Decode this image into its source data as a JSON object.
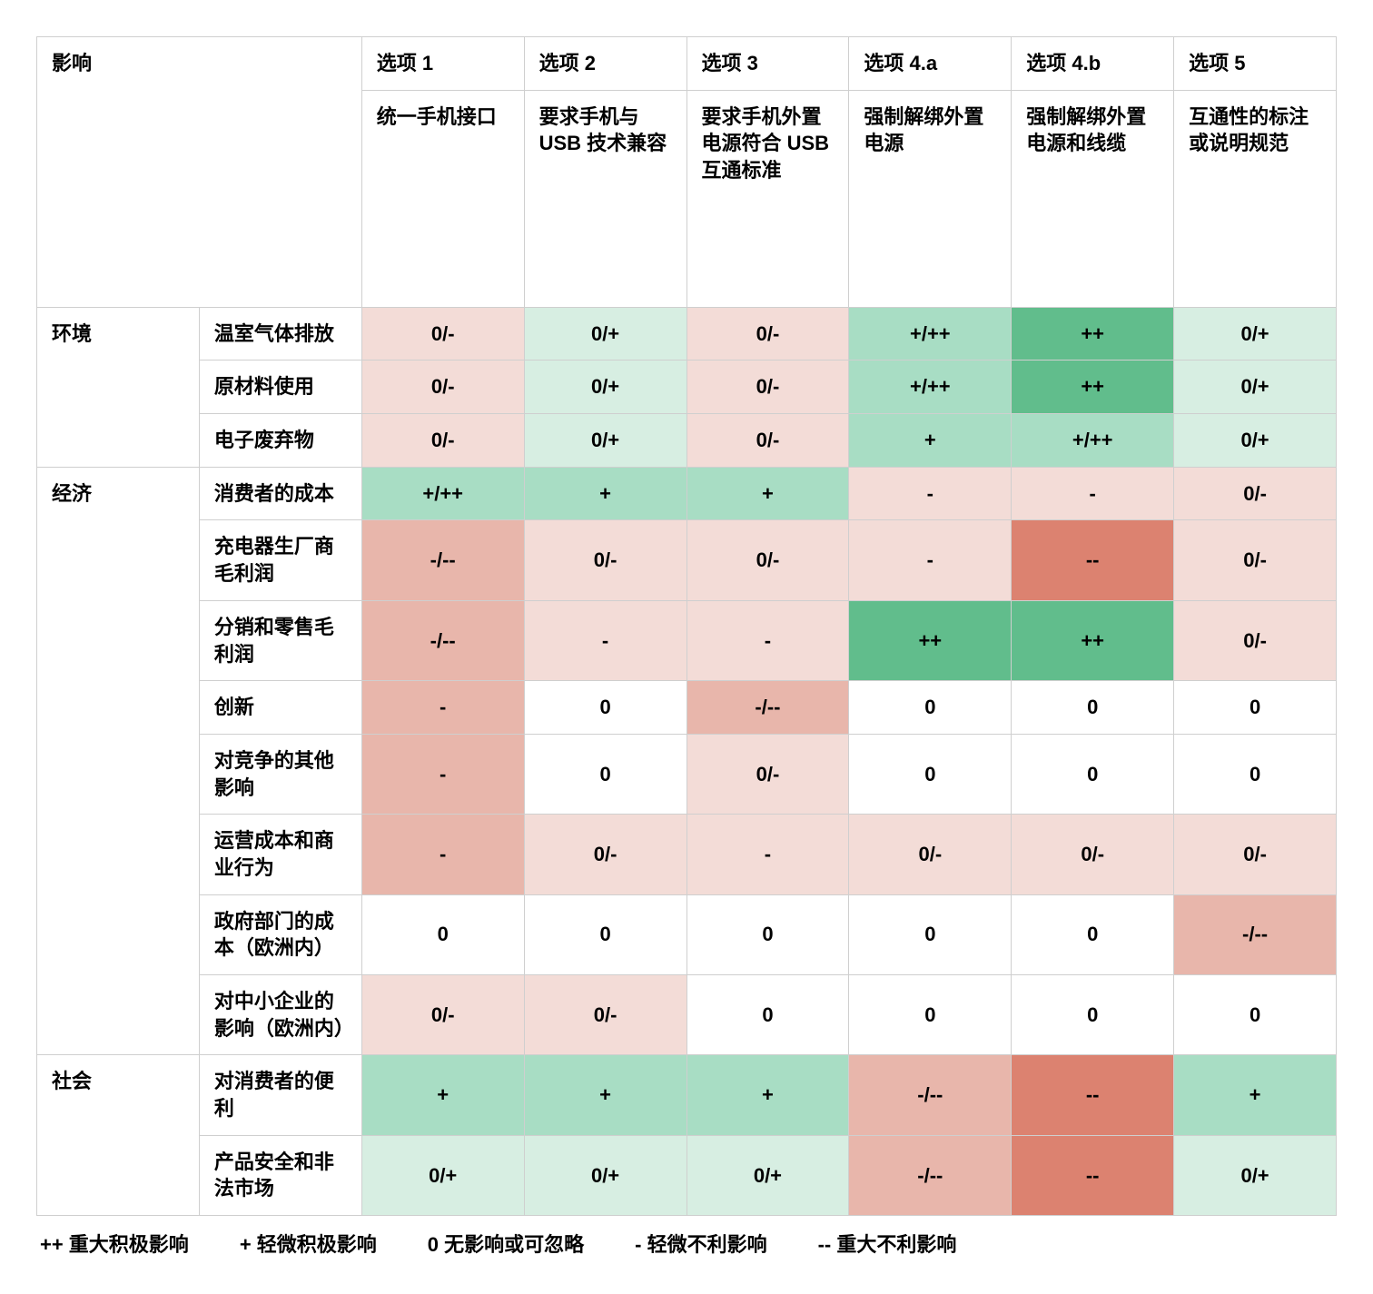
{
  "colors": {
    "white": "#ffffff",
    "lneg": "#f3dcd7",
    "mneg": "#e8b6ab",
    "hneg": "#dc8270",
    "lpos": "#d7eee2",
    "mpos": "#a8ddc4",
    "hpos": "#61bd8c"
  },
  "header": {
    "impact_label": "影响",
    "options": [
      {
        "title": "选项 1",
        "subtitle": "统一手机接口"
      },
      {
        "title": "选项 2",
        "subtitle": "要求手机与 USB 技术兼容"
      },
      {
        "title": "选项 3",
        "subtitle": "要求手机外置电源符合 USB 互通标准"
      },
      {
        "title": "选项 4.a",
        "subtitle": "强制解绑外置电源"
      },
      {
        "title": "选项 4.b",
        "subtitle": "强制解绑外置电源和线缆"
      },
      {
        "title": "选项 5",
        "subtitle": "互通性的标注或说明规范"
      }
    ]
  },
  "groups": [
    {
      "name": "环境",
      "rows": [
        {
          "label": "温室气体排放",
          "cells": [
            {
              "v": "0/-",
              "c": "lneg"
            },
            {
              "v": "0/+",
              "c": "lpos"
            },
            {
              "v": "0/-",
              "c": "lneg"
            },
            {
              "v": "+/++",
              "c": "mpos"
            },
            {
              "v": "++",
              "c": "hpos"
            },
            {
              "v": "0/+",
              "c": "lpos"
            }
          ]
        },
        {
          "label": "原材料使用",
          "cells": [
            {
              "v": "0/-",
              "c": "lneg"
            },
            {
              "v": "0/+",
              "c": "lpos"
            },
            {
              "v": "0/-",
              "c": "lneg"
            },
            {
              "v": "+/++",
              "c": "mpos"
            },
            {
              "v": "++",
              "c": "hpos"
            },
            {
              "v": "0/+",
              "c": "lpos"
            }
          ]
        },
        {
          "label": "电子废弃物",
          "cells": [
            {
              "v": "0/-",
              "c": "lneg"
            },
            {
              "v": "0/+",
              "c": "lpos"
            },
            {
              "v": "0/-",
              "c": "lneg"
            },
            {
              "v": "+",
              "c": "mpos"
            },
            {
              "v": "+/++",
              "c": "mpos"
            },
            {
              "v": "0/+",
              "c": "lpos"
            }
          ]
        }
      ]
    },
    {
      "name": "经济",
      "rows": [
        {
          "label": "消费者的成本",
          "cells": [
            {
              "v": "+/++",
              "c": "mpos"
            },
            {
              "v": "+",
              "c": "mpos"
            },
            {
              "v": "+",
              "c": "mpos"
            },
            {
              "v": "-",
              "c": "lneg"
            },
            {
              "v": "-",
              "c": "lneg"
            },
            {
              "v": "0/-",
              "c": "lneg"
            }
          ]
        },
        {
          "label": "充电器生厂商毛利润",
          "cells": [
            {
              "v": "-/--",
              "c": "mneg"
            },
            {
              "v": "0/-",
              "c": "lneg"
            },
            {
              "v": "0/-",
              "c": "lneg"
            },
            {
              "v": "-",
              "c": "lneg"
            },
            {
              "v": "--",
              "c": "hneg"
            },
            {
              "v": "0/-",
              "c": "lneg"
            }
          ]
        },
        {
          "label": "分销和零售毛利润",
          "cells": [
            {
              "v": "-/--",
              "c": "mneg"
            },
            {
              "v": "-",
              "c": "lneg"
            },
            {
              "v": "-",
              "c": "lneg"
            },
            {
              "v": "++",
              "c": "hpos"
            },
            {
              "v": "++",
              "c": "hpos"
            },
            {
              "v": "0/-",
              "c": "lneg"
            }
          ]
        },
        {
          "label": "创新",
          "cells": [
            {
              "v": "-",
              "c": "mneg"
            },
            {
              "v": "0",
              "c": "white"
            },
            {
              "v": "-/--",
              "c": "mneg"
            },
            {
              "v": "0",
              "c": "white"
            },
            {
              "v": "0",
              "c": "white"
            },
            {
              "v": "0",
              "c": "white"
            }
          ]
        },
        {
          "label": "对竞争的其他影响",
          "cells": [
            {
              "v": "-",
              "c": "mneg"
            },
            {
              "v": "0",
              "c": "white"
            },
            {
              "v": "0/-",
              "c": "lneg"
            },
            {
              "v": "0",
              "c": "white"
            },
            {
              "v": "0",
              "c": "white"
            },
            {
              "v": "0",
              "c": "white"
            }
          ]
        },
        {
          "label": "运营成本和商业行为",
          "cells": [
            {
              "v": "-",
              "c": "mneg"
            },
            {
              "v": "0/-",
              "c": "lneg"
            },
            {
              "v": "-",
              "c": "lneg"
            },
            {
              "v": "0/-",
              "c": "lneg"
            },
            {
              "v": "0/-",
              "c": "lneg"
            },
            {
              "v": "0/-",
              "c": "lneg"
            }
          ]
        },
        {
          "label": "政府部门的成本（欧洲内）",
          "cells": [
            {
              "v": "0",
              "c": "white"
            },
            {
              "v": "0",
              "c": "white"
            },
            {
              "v": "0",
              "c": "white"
            },
            {
              "v": "0",
              "c": "white"
            },
            {
              "v": "0",
              "c": "white"
            },
            {
              "v": "-/--",
              "c": "mneg"
            }
          ]
        },
        {
          "label": "对中小企业的影响（欧洲内）",
          "cells": [
            {
              "v": "0/-",
              "c": "lneg"
            },
            {
              "v": "0/-",
              "c": "lneg"
            },
            {
              "v": "0",
              "c": "white"
            },
            {
              "v": "0",
              "c": "white"
            },
            {
              "v": "0",
              "c": "white"
            },
            {
              "v": "0",
              "c": "white"
            }
          ]
        }
      ]
    },
    {
      "name": "社会",
      "rows": [
        {
          "label": "对消费者的便利",
          "cells": [
            {
              "v": "+",
              "c": "mpos"
            },
            {
              "v": "+",
              "c": "mpos"
            },
            {
              "v": "+",
              "c": "mpos"
            },
            {
              "v": "-/--",
              "c": "mneg"
            },
            {
              "v": "--",
              "c": "hneg"
            },
            {
              "v": "+",
              "c": "mpos"
            }
          ]
        },
        {
          "label": "产品安全和非法市场",
          "cells": [
            {
              "v": "0/+",
              "c": "lpos"
            },
            {
              "v": "0/+",
              "c": "lpos"
            },
            {
              "v": "0/+",
              "c": "lpos"
            },
            {
              "v": "-/--",
              "c": "mneg"
            },
            {
              "v": "--",
              "c": "hneg"
            },
            {
              "v": "0/+",
              "c": "lpos"
            }
          ]
        }
      ]
    }
  ],
  "legend": [
    "++ 重大积极影响",
    "+ 轻微积极影响",
    "0 无影响或可忽略",
    "- 轻微不利影响",
    "-- 重大不利影响"
  ]
}
